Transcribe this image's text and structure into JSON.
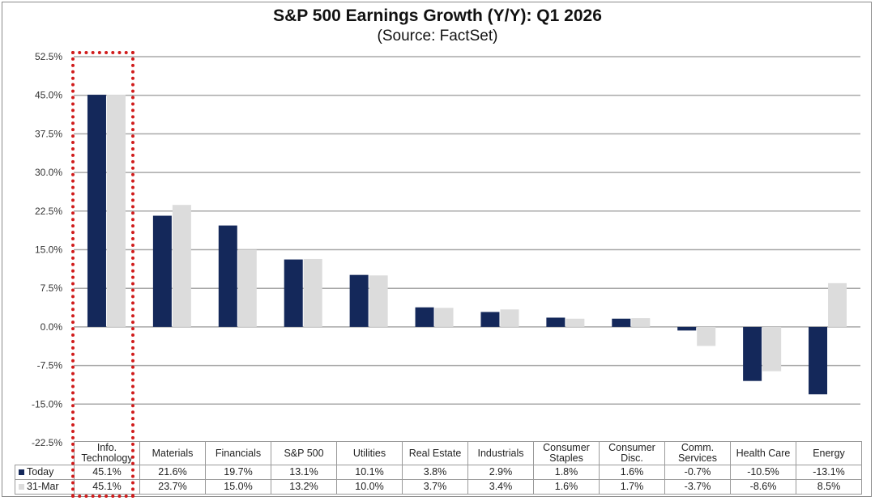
{
  "chart_data": {
    "type": "bar",
    "title": "S&P 500 Earnings Growth (Y/Y): Q1 2026",
    "subtitle": "(Source: FactSet)",
    "xlabel": "",
    "ylabel": "",
    "ylim": [
      -22.5,
      52.5
    ],
    "yticks": [
      52.5,
      45.0,
      37.5,
      30.0,
      22.5,
      15.0,
      7.5,
      0.0,
      -7.5,
      -15.0,
      -22.5
    ],
    "ytick_labels": [
      "52.5%",
      "45.0%",
      "37.5%",
      "30.0%",
      "22.5%",
      "15.0%",
      "7.5%",
      "0.0%",
      "-7.5%",
      "-15.0%",
      "-22.5%"
    ],
    "grid": true,
    "categories": [
      "Info. Technology",
      "Materials",
      "Financials",
      "S&P 500",
      "Utilities",
      "Real Estate",
      "Industrials",
      "Consumer Staples",
      "Consumer Disc.",
      "Comm. Services",
      "Health Care",
      "Energy"
    ],
    "category_lines": [
      [
        "Info.",
        "Technology"
      ],
      [
        "Materials"
      ],
      [
        "Financials"
      ],
      [
        "S&P 500"
      ],
      [
        "Utilities"
      ],
      [
        "Real Estate"
      ],
      [
        "Industrials"
      ],
      [
        "Consumer",
        "Staples"
      ],
      [
        "Consumer",
        "Disc."
      ],
      [
        "Comm.",
        "Services"
      ],
      [
        "Health Care"
      ],
      [
        "Energy"
      ]
    ],
    "series": [
      {
        "name": "Today",
        "color": "#14285a",
        "values": [
          45.1,
          21.6,
          19.7,
          13.1,
          10.1,
          3.8,
          2.9,
          1.8,
          1.6,
          -0.7,
          -10.5,
          -13.1
        ],
        "labels": [
          "45.1%",
          "21.6%",
          "19.7%",
          "13.1%",
          "10.1%",
          "3.8%",
          "2.9%",
          "1.8%",
          "1.6%",
          "-0.7%",
          "-10.5%",
          "-13.1%"
        ]
      },
      {
        "name": "31-Mar",
        "color": "#dcdcdc",
        "values": [
          45.1,
          23.7,
          15.0,
          13.2,
          10.0,
          3.7,
          3.4,
          1.6,
          1.7,
          -3.7,
          -8.6,
          8.5
        ],
        "labels": [
          "45.1%",
          "23.7%",
          "15.0%",
          "13.2%",
          "10.0%",
          "3.7%",
          "3.4%",
          "1.6%",
          "1.7%",
          "-3.7%",
          "-8.6%",
          "8.5%"
        ]
      }
    ],
    "legend": "data-table-bottom",
    "annotations": [
      {
        "type": "dotted-highlight-box",
        "target": "Info. Technology",
        "color": "#d01c1c"
      }
    ]
  }
}
